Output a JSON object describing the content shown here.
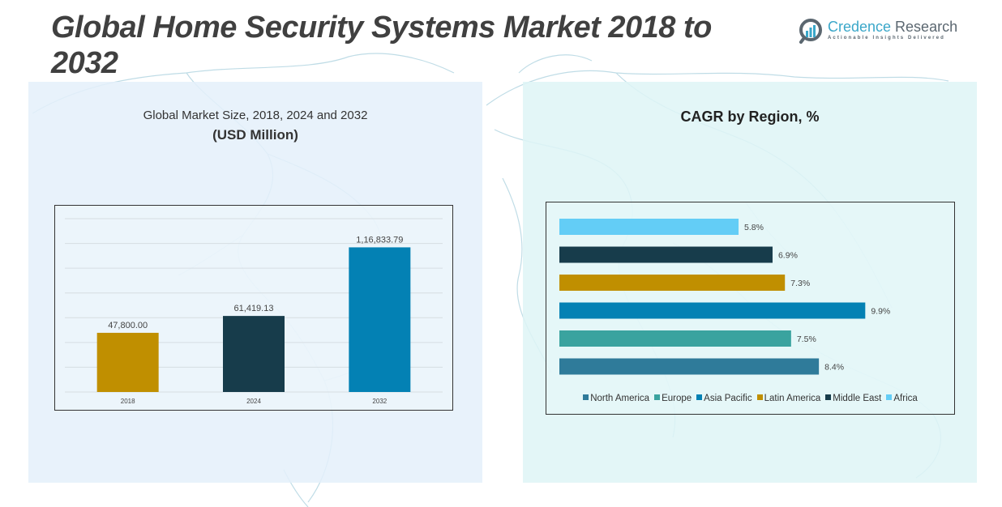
{
  "page": {
    "title": "Global Home Security Systems Market 2018 to 2032"
  },
  "logo": {
    "name_part1": "Credence",
    "name_part2": " Research",
    "tagline": "Actionable Insights Delivered"
  },
  "colors": {
    "gold": "#c08f00",
    "navy": "#173c4b",
    "blue": "#0381b4",
    "teal": "#3aa39f",
    "steel": "#2f7b9a",
    "sky": "#63cdf6"
  },
  "chart_data": [
    {
      "type": "bar",
      "title": "Global Market Size, 2018, 2024 and 2032",
      "subtitle": "(USD Million)",
      "categories": [
        "2018",
        "2024",
        "2032"
      ],
      "values": [
        47800.0,
        61419.13,
        116833.79
      ],
      "data_labels": [
        "47,800.00",
        "61,419.13",
        "1,16,833.79"
      ],
      "bar_colors": [
        "#c08f00",
        "#173c4b",
        "#0381b4"
      ],
      "xlabel": "",
      "ylabel": "",
      "ylim": [
        0,
        140000
      ],
      "grid": true,
      "legend": "none"
    },
    {
      "type": "bar",
      "orientation": "horizontal",
      "title": "CAGR by Region, %",
      "categories": [
        "North America",
        "Europe",
        "Asia Pacific",
        "Latin America",
        "Middle East",
        "Africa"
      ],
      "values": [
        8.4,
        7.5,
        9.9,
        7.3,
        6.9,
        5.8
      ],
      "data_labels": [
        "8.4%",
        "7.5%",
        "9.9%",
        "7.3%",
        "6.9%",
        "5.8%"
      ],
      "bar_colors": [
        "#2f7b9a",
        "#3aa39f",
        "#0381b4",
        "#c08f00",
        "#173c4b",
        "#63cdf6"
      ],
      "xlim": [
        0,
        10.6
      ],
      "grid": false,
      "legend": "bottom"
    }
  ]
}
